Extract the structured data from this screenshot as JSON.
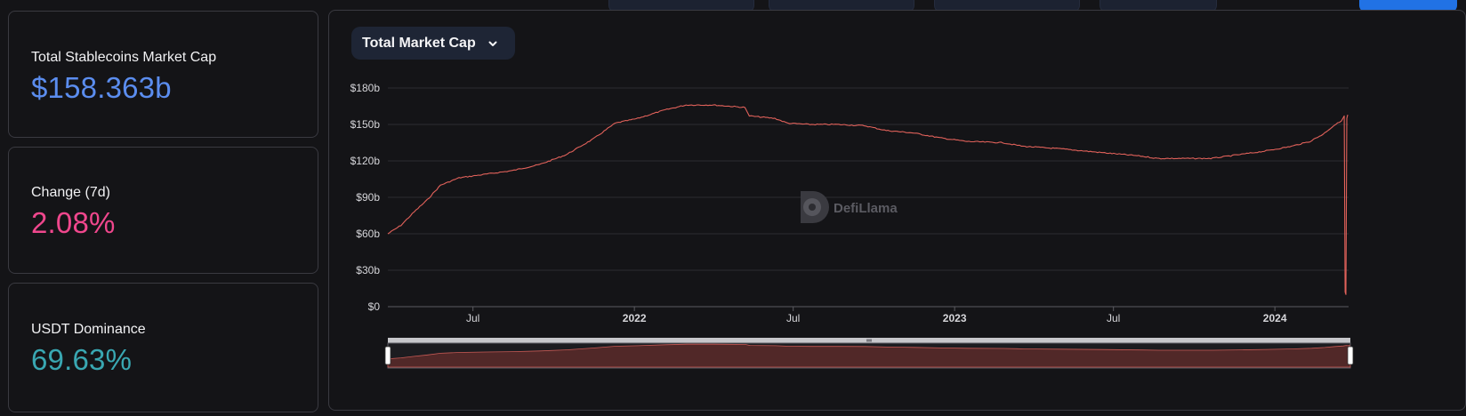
{
  "stats": [
    {
      "label": "Total Stablecoins Market Cap",
      "value": "$158.363b",
      "color": "#5b8def"
    },
    {
      "label": "Change (7d)",
      "value": "2.08%",
      "color": "#f0478d"
    },
    {
      "label": "USDT Dominance",
      "value": "69.63%",
      "color": "#39a7b2"
    }
  ],
  "chart_panel": {
    "dropdown_label": "Total Market Cap",
    "watermark": "DefiLlama"
  },
  "chart_data": {
    "type": "line",
    "title": "",
    "xlabel": "",
    "ylabel": "",
    "line_color": "#e0615a",
    "y_ticks": [
      "$0",
      "$30b",
      "$60b",
      "$90b",
      "$120b",
      "$150b",
      "$180b"
    ],
    "ylim": [
      0,
      180
    ],
    "x_ticks": [
      "Jul",
      "2022",
      "Jul",
      "2023",
      "Jul",
      "2024"
    ],
    "x_ticks_bold": [
      false,
      true,
      false,
      true,
      false,
      true
    ],
    "xlim": [
      "2021-03-26",
      "2024-03-25"
    ],
    "tick_dates": [
      "2021-07-01",
      "2022-01-01",
      "2022-07-01",
      "2023-01-01",
      "2023-07-01",
      "2024-01-01"
    ],
    "series": [
      {
        "values_unit": "billion USD",
        "points": [
          [
            "2021-03-26",
            60
          ],
          [
            "2021-04-10",
            67
          ],
          [
            "2021-04-25",
            78
          ],
          [
            "2021-05-10",
            88
          ],
          [
            "2021-05-25",
            100
          ],
          [
            "2021-06-15",
            106
          ],
          [
            "2021-07-15",
            109
          ],
          [
            "2021-08-15",
            112
          ],
          [
            "2021-09-15",
            117
          ],
          [
            "2021-10-15",
            125
          ],
          [
            "2021-11-15",
            138
          ],
          [
            "2021-12-10",
            151
          ],
          [
            "2022-01-05",
            155
          ],
          [
            "2022-02-05",
            162
          ],
          [
            "2022-03-01",
            166
          ],
          [
            "2022-04-01",
            166
          ],
          [
            "2022-05-07",
            164
          ],
          [
            "2022-05-12",
            157
          ],
          [
            "2022-06-10",
            155
          ],
          [
            "2022-06-25",
            151
          ],
          [
            "2022-07-20",
            150
          ],
          [
            "2022-08-20",
            150
          ],
          [
            "2022-09-20",
            149
          ],
          [
            "2022-10-15",
            145
          ],
          [
            "2022-11-15",
            143
          ],
          [
            "2022-12-15",
            139
          ],
          [
            "2023-01-15",
            136
          ],
          [
            "2023-02-25",
            135
          ],
          [
            "2023-03-20",
            132
          ],
          [
            "2023-05-01",
            130
          ],
          [
            "2023-06-15",
            127
          ],
          [
            "2023-08-01",
            124
          ],
          [
            "2023-08-20",
            122
          ],
          [
            "2023-09-20",
            122
          ],
          [
            "2023-10-20",
            122
          ],
          [
            "2023-11-20",
            125
          ],
          [
            "2023-12-20",
            128
          ],
          [
            "2024-01-20",
            132
          ],
          [
            "2024-02-10",
            136
          ],
          [
            "2024-02-25",
            142
          ],
          [
            "2024-03-08",
            149
          ],
          [
            "2024-03-17",
            153
          ],
          [
            "2024-03-20",
            157
          ],
          [
            "2024-03-21",
            12
          ],
          [
            "2024-03-22",
            10
          ],
          [
            "2024-03-23",
            155
          ],
          [
            "2024-03-24",
            158
          ]
        ]
      }
    ],
    "grid": true,
    "brush_slider": true
  }
}
